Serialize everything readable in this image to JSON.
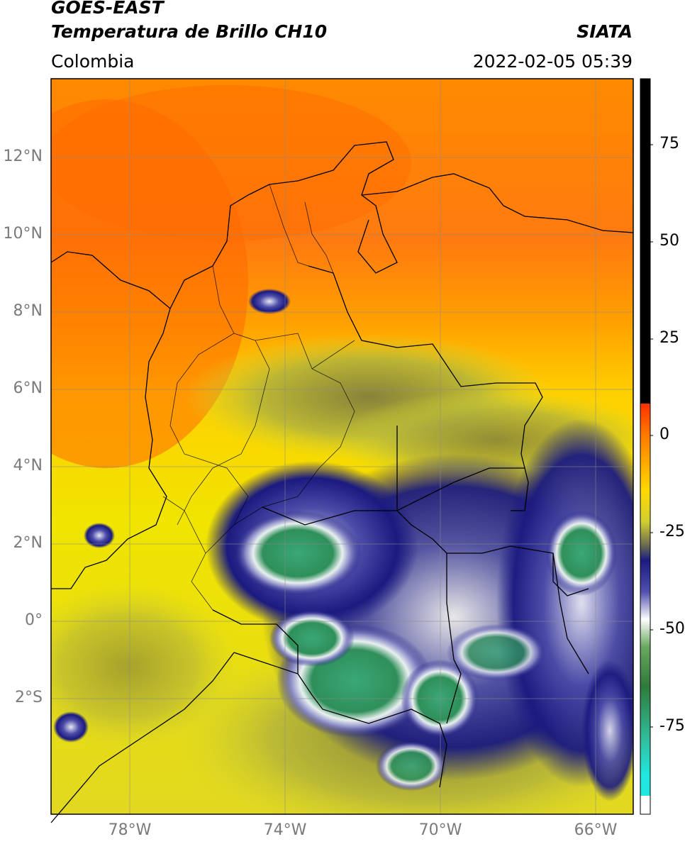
{
  "header": {
    "satellite": "GOES-EAST",
    "product": "Temperatura de Brillo CH10",
    "region": "Colombia",
    "agency": "SIATA",
    "datetime": "2022-02-05 05:39"
  },
  "map": {
    "lat_labels": [
      "12°N",
      "10°N",
      "8°N",
      "6°N",
      "4°N",
      "2°N",
      "0°",
      "2°S"
    ],
    "lon_labels": [
      "78°W",
      "74°W",
      "70°W",
      "66°W"
    ],
    "lat_range": [
      -4.5,
      14
    ],
    "lon_range": [
      -80,
      -65
    ],
    "grid": true
  },
  "colorbar": {
    "ticks": [
      "75",
      "50",
      "25",
      "0",
      "-25",
      "-50",
      "-75"
    ],
    "range": [
      -95,
      90
    ],
    "colors": {
      "warm": "#ff6a00",
      "mid": "#ffd200",
      "cold": "#1a1a80",
      "very_cold": "#2e8b57",
      "extreme": "#20d0c0",
      "background": "#000000"
    }
  }
}
